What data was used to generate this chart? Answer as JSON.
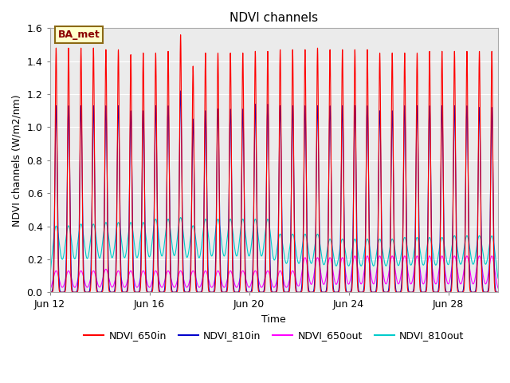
{
  "title": "NDVI channels",
  "xlabel": "Time",
  "ylabel": "NDVI channels (W/m2/nm)",
  "ylim": [
    0.0,
    1.6
  ],
  "yticks": [
    0.0,
    0.2,
    0.4,
    0.6,
    0.8,
    1.0,
    1.2,
    1.4,
    1.6
  ],
  "xtick_labels": [
    "Jun 12",
    "Jun 16",
    "Jun 20",
    "Jun 24",
    "Jun 28"
  ],
  "num_cycles": 36,
  "background_color": "#ebebeb",
  "fig_background": "#ffffff",
  "annotation_text": "BA_met",
  "annotation_bg": "#ffffcc",
  "annotation_border": "#8b6914",
  "channels": {
    "NDVI_650in": {
      "color": "#ff0000",
      "label": "NDVI_650in",
      "peak_heights": [
        1.48,
        1.48,
        1.48,
        1.48,
        1.47,
        1.47,
        1.44,
        1.45,
        1.45,
        1.46,
        1.56,
        1.37,
        1.45,
        1.45,
        1.45,
        1.45,
        1.46,
        1.46,
        1.47,
        1.47,
        1.47,
        1.48,
        1.47,
        1.47,
        1.47,
        1.47,
        1.45,
        1.45,
        1.45,
        1.45,
        1.46,
        1.46,
        1.46,
        1.46,
        1.46,
        1.46
      ],
      "sigma": 0.04
    },
    "NDVI_810in": {
      "color": "#0000cc",
      "label": "NDVI_810in",
      "peak_heights": [
        1.13,
        1.13,
        1.13,
        1.13,
        1.13,
        1.13,
        1.1,
        1.1,
        1.13,
        1.13,
        1.22,
        1.05,
        1.1,
        1.11,
        1.11,
        1.11,
        1.14,
        1.14,
        1.13,
        1.13,
        1.13,
        1.13,
        1.13,
        1.13,
        1.13,
        1.13,
        1.1,
        1.1,
        1.13,
        1.13,
        1.13,
        1.13,
        1.13,
        1.13,
        1.12,
        1.12
      ],
      "sigma": 0.05
    },
    "NDVI_650out": {
      "color": "#ff00ff",
      "label": "NDVI_650out",
      "peak_heights": [
        0.13,
        0.13,
        0.13,
        0.13,
        0.14,
        0.13,
        0.13,
        0.13,
        0.13,
        0.13,
        0.13,
        0.13,
        0.13,
        0.13,
        0.13,
        0.13,
        0.13,
        0.13,
        0.13,
        0.13,
        0.21,
        0.21,
        0.21,
        0.21,
        0.22,
        0.22,
        0.22,
        0.22,
        0.22,
        0.22,
        0.22,
        0.22,
        0.22,
        0.22,
        0.22,
        0.22
      ],
      "sigma": 0.12
    },
    "NDVI_810out": {
      "color": "#00cccc",
      "label": "NDVI_810out",
      "peak_heights": [
        0.4,
        0.4,
        0.41,
        0.41,
        0.42,
        0.42,
        0.42,
        0.42,
        0.44,
        0.44,
        0.45,
        0.4,
        0.44,
        0.44,
        0.44,
        0.44,
        0.44,
        0.44,
        0.35,
        0.35,
        0.35,
        0.35,
        0.32,
        0.32,
        0.32,
        0.32,
        0.32,
        0.32,
        0.33,
        0.33,
        0.33,
        0.33,
        0.34,
        0.34,
        0.34,
        0.34
      ],
      "sigma": 0.15
    }
  },
  "period": 0.5,
  "total_days": 18,
  "points": 10000,
  "legend_colors": [
    "#ff0000",
    "#0000cc",
    "#ff00ff",
    "#00cccc"
  ],
  "legend_labels": [
    "NDVI_650in",
    "NDVI_810in",
    "NDVI_650out",
    "NDVI_810out"
  ],
  "xtick_day_positions": [
    0,
    4,
    8,
    12,
    16
  ],
  "grid_color": "#ffffff",
  "spine_color": "#aaaaaa"
}
